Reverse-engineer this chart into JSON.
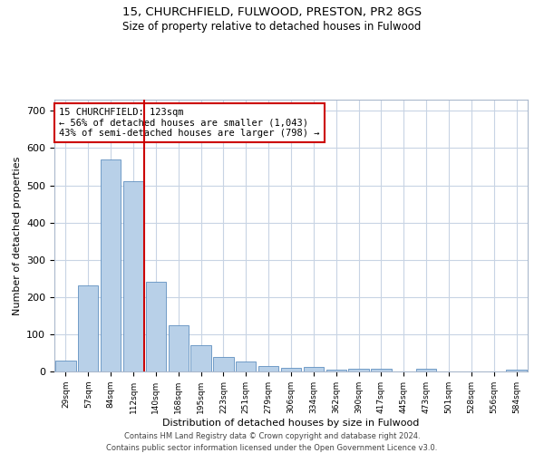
{
  "title1": "15, CHURCHFIELD, FULWOOD, PRESTON, PR2 8GS",
  "title2": "Size of property relative to detached houses in Fulwood",
  "xlabel": "Distribution of detached houses by size in Fulwood",
  "ylabel": "Number of detached properties",
  "footnote1": "Contains HM Land Registry data © Crown copyright and database right 2024.",
  "footnote2": "Contains public sector information licensed under the Open Government Licence v3.0.",
  "categories": [
    "29sqm",
    "57sqm",
    "84sqm",
    "112sqm",
    "140sqm",
    "168sqm",
    "195sqm",
    "223sqm",
    "251sqm",
    "279sqm",
    "306sqm",
    "334sqm",
    "362sqm",
    "390sqm",
    "417sqm",
    "445sqm",
    "473sqm",
    "501sqm",
    "528sqm",
    "556sqm",
    "584sqm"
  ],
  "values": [
    28,
    230,
    570,
    510,
    240,
    125,
    70,
    40,
    27,
    15,
    10,
    12,
    6,
    7,
    7,
    0,
    7,
    0,
    0,
    0,
    6
  ],
  "bar_color": "#b8d0e8",
  "bar_edge_color": "#6090c0",
  "grid_color": "#c8d4e4",
  "vline_x": 3.5,
  "vline_color": "#cc0000",
  "annotation_text": "15 CHURCHFIELD: 123sqm\n← 56% of detached houses are smaller (1,043)\n43% of semi-detached houses are larger (798) →",
  "annotation_box_color": "#ffffff",
  "annotation_box_edge_color": "#cc0000",
  "ylim": [
    0,
    730
  ],
  "yticks": [
    0,
    100,
    200,
    300,
    400,
    500,
    600,
    700
  ]
}
